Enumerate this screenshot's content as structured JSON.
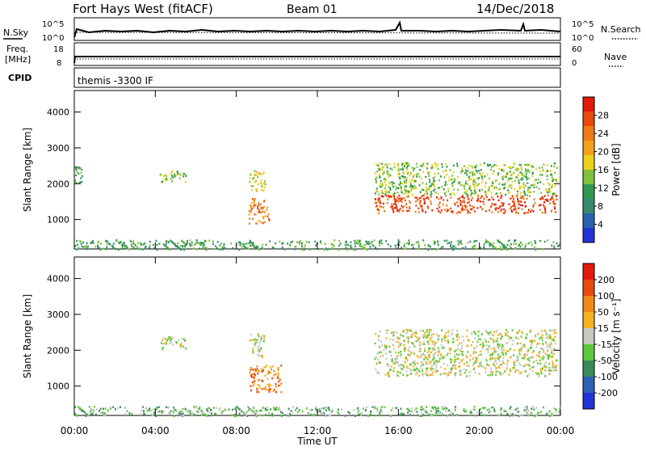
{
  "header": {
    "station": "Fort Hays West (fitACF)",
    "beam": "Beam 01",
    "date": "14/Dec/2018"
  },
  "strips": {
    "nsky_label": "N.Sky",
    "nsearch_label": "N.Search",
    "noise_ticks": [
      "10^5",
      "10^0"
    ],
    "freq_label_1": "Freq.",
    "freq_label_2": "[MHz]",
    "freq_ticks": [
      "18",
      "8"
    ],
    "nave_label": "Nave",
    "nave_ticks": [
      "60",
      "0"
    ],
    "cpid_label": "CPID",
    "cpid_text": "themis -3300 IF"
  },
  "chart_data": [
    {
      "type": "heatmap",
      "name": "power",
      "ylabel": "Slant Range [km]",
      "xlabel": "",
      "x_ticks": [
        "00:00",
        "04:00",
        "08:00",
        "12:00",
        "16:00",
        "20:00",
        "00:00"
      ],
      "y_ticks": [
        1000,
        2000,
        3000,
        4000
      ],
      "xlim_hours": [
        0,
        24
      ],
      "ylim_km": [
        180,
        4600
      ],
      "colorbar": {
        "label": "Power [dB]",
        "ticks": [
          "4",
          "8",
          "12",
          "16",
          "20",
          "24",
          "28"
        ],
        "colors": [
          "#2333d9",
          "#2b5fb0",
          "#3a8a70",
          "#2f9a4f",
          "#7fc23a",
          "#e9d21e",
          "#f1a21a",
          "#ef7a17",
          "#e9480f",
          "#e31a0b"
        ]
      },
      "regions": [
        {
          "t0": 4.2,
          "t1": 5.5,
          "r0": 2050,
          "r1": 2400,
          "level": 4
        },
        {
          "t0": 0.0,
          "t1": 0.4,
          "r0": 2000,
          "r1": 2500,
          "level": 3
        },
        {
          "t0": 8.6,
          "t1": 9.4,
          "r0": 1800,
          "r1": 2400,
          "level": 5
        },
        {
          "t0": 8.6,
          "t1": 9.6,
          "r0": 900,
          "r1": 1600,
          "level": 7
        },
        {
          "t0": 14.8,
          "t1": 23.8,
          "r0": 1200,
          "r1": 1700,
          "level": 8
        },
        {
          "t0": 14.8,
          "t1": 23.8,
          "r0": 1700,
          "r1": 2600,
          "level": 4
        },
        {
          "t0": 0.0,
          "t1": 24.0,
          "r0": 180,
          "r1": 450,
          "level": 3
        }
      ]
    },
    {
      "type": "heatmap",
      "name": "velocity",
      "ylabel": "Slant Range [km]",
      "xlabel": "Time UT",
      "x_ticks": [
        "00:00",
        "04:00",
        "08:00",
        "12:00",
        "16:00",
        "20:00",
        "00:00"
      ],
      "y_ticks": [
        1000,
        2000,
        3000,
        4000
      ],
      "xlim_hours": [
        0,
        24
      ],
      "ylim_km": [
        180,
        4600
      ],
      "colorbar": {
        "label": "Velocity [m s⁻¹]",
        "ticks": [
          "200",
          "100",
          "50",
          "15",
          "-15",
          "-50",
          "-100",
          "-200"
        ],
        "colors": [
          "#2333d9",
          "#2f5fb5",
          "#3b8a5a",
          "#5cc83a",
          "#c8c8c0",
          "#f5b21e",
          "#ef8a17",
          "#e9480f",
          "#e31a0b"
        ]
      },
      "regions": [
        {
          "t0": 4.2,
          "t1": 5.5,
          "r0": 2050,
          "r1": 2400,
          "level": 4
        },
        {
          "t0": 8.6,
          "t1": 9.4,
          "r0": 1800,
          "r1": 2500,
          "level": 4
        },
        {
          "t0": 8.6,
          "t1": 10.2,
          "r0": 850,
          "r1": 1600,
          "level": 6
        },
        {
          "t0": 14.8,
          "t1": 23.8,
          "r0": 1300,
          "r1": 2600,
          "level": 4
        },
        {
          "t0": 0.0,
          "t1": 24.0,
          "r0": 180,
          "r1": 450,
          "level": 3
        }
      ]
    }
  ]
}
